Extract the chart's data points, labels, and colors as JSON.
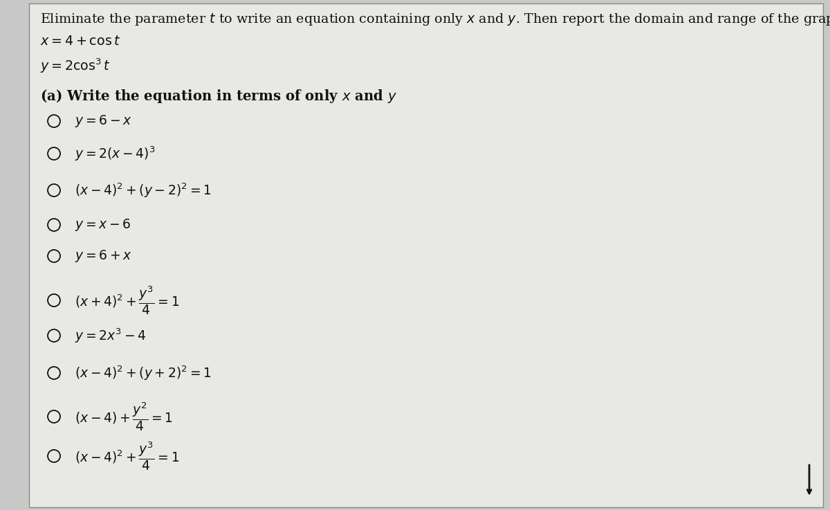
{
  "background_color": "#c8c8c8",
  "box_bg_color": "#e8e8e4",
  "border_color": "#888888",
  "text_color": "#111111",
  "title": "Eliminate the parameter $t$ to write an equation containing only $x$ and $y$. Then report the domain and range of the graph.",
  "eq1": "$x = 4 + \\cos t$",
  "eq2": "$y = 2\\cos^3 t$",
  "part_a": "(a) Write the equation in terms of only $x$ and $y$",
  "options": [
    "$y = 6 - x$",
    "$y = 2(x - 4)^3$",
    "$(x - 4)^2 + (y - 2)^2 = 1$",
    "$y = x - 6$",
    "$y = 6 + x$",
    "$(x + 4)^2 + \\dfrac{y^3}{4} = 1$",
    "$y = 2x^3 - 4$",
    "$(x - 4)^2 + (y + 2)^2 = 1$",
    "$(x - 4) + \\dfrac{y^2}{4} = 1$",
    "$(x - 4)^2 + \\dfrac{y^3}{4} = 1$"
  ],
  "title_fontsize": 13.8,
  "body_fontsize": 13.8,
  "option_fontsize": 13.5,
  "bold_fontsize": 14.2
}
